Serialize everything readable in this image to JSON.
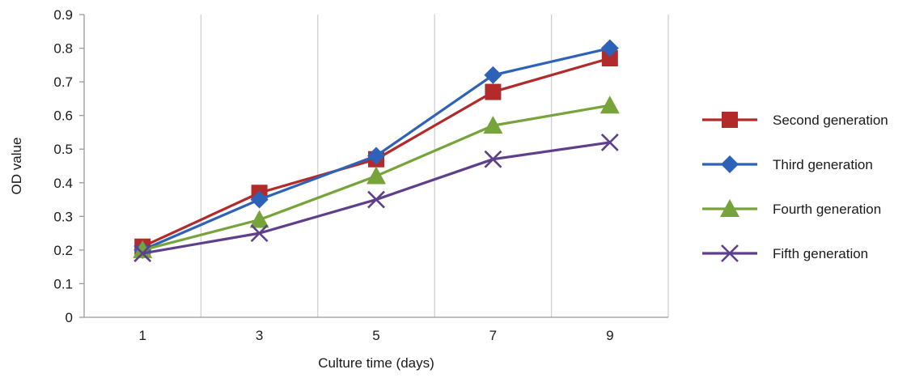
{
  "chart_data": {
    "type": "line",
    "title": "",
    "xlabel": "Culture time (days)",
    "ylabel": "OD value",
    "categories": [
      "1",
      "3",
      "5",
      "7",
      "9"
    ],
    "ylim": [
      0,
      0.9
    ],
    "yticks": [
      "0",
      "0.1",
      "0.2",
      "0.3",
      "0.4",
      "0.5",
      "0.6",
      "0.7",
      "0.8",
      "0.9"
    ],
    "grid": "vertical",
    "legend_position": "right",
    "series": [
      {
        "name": "Second generation",
        "values": [
          0.21,
          0.37,
          0.47,
          0.67,
          0.77
        ],
        "color": "#b22a2a",
        "marker": "square"
      },
      {
        "name": "Third generation",
        "values": [
          0.2,
          0.35,
          0.48,
          0.72,
          0.8
        ],
        "color": "#2e62b8",
        "marker": "diamond"
      },
      {
        "name": "Fourth generation",
        "values": [
          0.2,
          0.29,
          0.42,
          0.57,
          0.63
        ],
        "color": "#76a33a",
        "marker": "triangle"
      },
      {
        "name": "Fifth generation",
        "values": [
          0.19,
          0.25,
          0.35,
          0.47,
          0.52
        ],
        "color": "#5e3f8c",
        "marker": "x"
      }
    ]
  }
}
